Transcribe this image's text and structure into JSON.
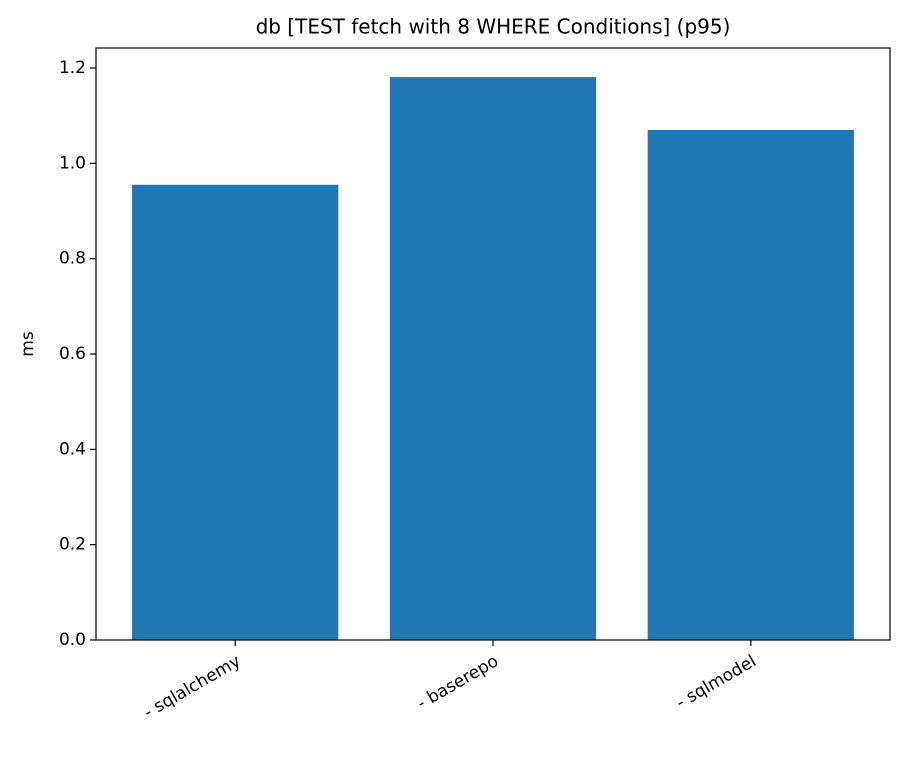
{
  "chart_data": {
    "type": "bar",
    "title": "db [TEST fetch with 8 WHERE Conditions] (p95)",
    "y_label": "ms",
    "categories": [
      "- sqlalchemy",
      "- baserepo",
      "- sqlmodel"
    ],
    "values": [
      0.955,
      1.181,
      1.07
    ],
    "color": "#1f77b4",
    "ylim": [
      0,
      1.242
    ],
    "yticks": [
      {
        "value": 0,
        "label": "0.0"
      },
      {
        "value": 0.2,
        "label": "0.2"
      },
      {
        "value": 0.4,
        "label": "0.4"
      },
      {
        "value": 0.6,
        "label": "0.6"
      },
      {
        "value": 0.8,
        "label": "0.8"
      },
      {
        "value": 1.0,
        "label": "1.0"
      },
      {
        "value": 1.2,
        "label": "1.2"
      }
    ],
    "grid": false
  }
}
